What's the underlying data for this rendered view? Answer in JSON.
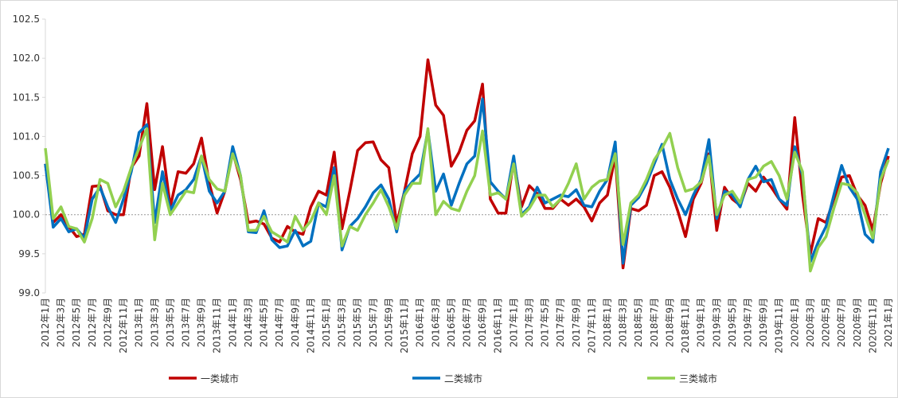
{
  "chart_data": {
    "type": "line",
    "categories": [
      "2012年1月",
      null,
      "2012年3月",
      null,
      "2012年5月",
      null,
      "2012年7月",
      null,
      "2012年9月",
      null,
      "2012年11月",
      null,
      "2013年1月",
      null,
      "2013年3月",
      null,
      "2013年5月",
      null,
      "2013年7月",
      null,
      "2013年9月",
      null,
      "2013年11月",
      null,
      "2014年1月",
      null,
      "2014年3月",
      null,
      "2014年5月",
      null,
      "2014年7月",
      null,
      "2014年9月",
      null,
      "2014年11月",
      null,
      "2015年1月",
      null,
      "2015年3月",
      null,
      "2015年5月",
      null,
      "2015年7月",
      null,
      "2015年9月",
      null,
      "2015年11月",
      null,
      "2016年1月",
      null,
      "2016年3月",
      null,
      "2016年5月",
      null,
      "2016年7月",
      null,
      "2016年9月",
      null,
      "2016年11月",
      null,
      "2017年1月",
      null,
      "2017年3月",
      null,
      "2017年5月",
      null,
      "2017年7月",
      null,
      "2017年9月",
      null,
      "2017年11月",
      null,
      "2018年1月",
      null,
      "2018年3月",
      null,
      "2018年5月",
      null,
      "2018年7月",
      null,
      "2018年9月",
      null,
      "2018年11月",
      null,
      "2019年1月",
      null,
      "2019年3月",
      null,
      "2019年5月",
      null,
      "2019年7月",
      null,
      "2019年9月",
      null,
      "2019年11月",
      null,
      "2020年1月",
      null,
      "2020年3月",
      null,
      "2020年5月",
      null,
      "2020年7月",
      null,
      "2020年9月",
      null,
      "2020年11月",
      null,
      "2021年1月"
    ],
    "series": [
      {
        "name": "一类城市",
        "color": "#c00000",
        "values": [
          100.65,
          99.9,
          100.0,
          99.85,
          99.72,
          99.75,
          100.36,
          100.37,
          100.05,
          100.0,
          100.0,
          100.6,
          100.75,
          101.42,
          100.32,
          100.87,
          100.1,
          100.55,
          100.53,
          100.65,
          100.98,
          100.4,
          100.02,
          100.3,
          100.8,
          100.45,
          99.9,
          99.92,
          99.88,
          99.7,
          99.65,
          99.85,
          99.78,
          99.75,
          100.1,
          100.3,
          100.25,
          100.8,
          99.82,
          100.3,
          100.82,
          100.92,
          100.93,
          100.7,
          100.6,
          99.88,
          100.3,
          100.78,
          101.0,
          101.98,
          101.4,
          101.27,
          100.62,
          100.8,
          101.08,
          101.2,
          101.67,
          100.2,
          100.02,
          100.02,
          100.7,
          100.1,
          100.37,
          100.27,
          100.08,
          100.08,
          100.2,
          100.12,
          100.2,
          100.1,
          99.92,
          100.15,
          100.25,
          100.75,
          99.32,
          100.08,
          100.05,
          100.12,
          100.5,
          100.55,
          100.35,
          100.05,
          99.72,
          100.2,
          100.4,
          100.78,
          99.8,
          100.35,
          100.2,
          100.12,
          100.4,
          100.3,
          100.48,
          100.35,
          100.2,
          100.07,
          101.24,
          100.25,
          99.5,
          99.95,
          99.9,
          100.2,
          100.48,
          100.5,
          100.25,
          100.12,
          99.8,
          100.4,
          100.75
        ]
      },
      {
        "name": "二类城市",
        "color": "#0070c0",
        "values": [
          100.65,
          99.84,
          99.95,
          99.78,
          99.82,
          99.7,
          100.2,
          100.35,
          100.1,
          99.9,
          100.2,
          100.55,
          101.05,
          101.15,
          99.9,
          100.55,
          100.05,
          100.25,
          100.32,
          100.45,
          100.75,
          100.3,
          100.15,
          100.3,
          100.87,
          100.5,
          99.78,
          99.77,
          100.05,
          99.68,
          99.58,
          99.6,
          99.8,
          99.6,
          99.66,
          100.15,
          100.1,
          100.6,
          99.55,
          99.85,
          99.95,
          100.1,
          100.28,
          100.38,
          100.2,
          99.78,
          100.3,
          100.42,
          100.52,
          101.08,
          100.3,
          100.52,
          100.12,
          100.4,
          100.65,
          100.75,
          101.48,
          100.42,
          100.3,
          100.2,
          100.75,
          100.0,
          100.1,
          100.35,
          100.15,
          100.2,
          100.25,
          100.23,
          100.32,
          100.12,
          100.1,
          100.3,
          100.45,
          100.93,
          99.38,
          100.12,
          100.22,
          100.4,
          100.65,
          100.9,
          100.45,
          100.2,
          100.0,
          100.25,
          100.45,
          100.96,
          99.95,
          100.3,
          100.25,
          100.1,
          100.45,
          100.62,
          100.42,
          100.45,
          100.2,
          100.12,
          100.87,
          100.5,
          99.4,
          99.65,
          99.85,
          100.25,
          100.63,
          100.35,
          100.2,
          99.75,
          99.65,
          100.55,
          100.85
        ]
      },
      {
        "name": "三类城市",
        "color": "#92d050",
        "values": [
          100.85,
          99.95,
          100.1,
          99.85,
          99.82,
          99.65,
          99.95,
          100.45,
          100.4,
          100.1,
          100.3,
          100.6,
          100.85,
          101.1,
          99.68,
          100.4,
          100.0,
          100.15,
          100.3,
          100.28,
          100.75,
          100.45,
          100.33,
          100.3,
          100.78,
          100.5,
          99.8,
          99.8,
          99.98,
          99.78,
          99.72,
          99.65,
          99.98,
          99.8,
          99.92,
          100.15,
          100.0,
          100.5,
          99.6,
          99.85,
          99.8,
          100.0,
          100.15,
          100.32,
          100.1,
          99.82,
          100.25,
          100.4,
          100.4,
          101.1,
          100.0,
          100.17,
          100.08,
          100.05,
          100.3,
          100.5,
          101.07,
          100.25,
          100.28,
          100.2,
          100.65,
          99.98,
          100.08,
          100.25,
          100.25,
          100.1,
          100.2,
          100.4,
          100.65,
          100.2,
          100.35,
          100.43,
          100.45,
          100.78,
          99.62,
          100.15,
          100.25,
          100.45,
          100.7,
          100.85,
          101.04,
          100.6,
          100.3,
          100.33,
          100.42,
          100.75,
          100.0,
          100.25,
          100.3,
          100.15,
          100.45,
          100.48,
          100.62,
          100.68,
          100.5,
          100.2,
          100.8,
          100.55,
          99.28,
          99.58,
          99.72,
          100.08,
          100.4,
          100.38,
          100.28,
          100.0,
          99.7,
          100.45,
          100.7
        ]
      }
    ],
    "ylim": [
      99,
      102.5
    ],
    "yticks": [
      {
        "value": 99,
        "label": "99.0"
      },
      99.5,
      {
        "value": 100,
        "label": "100.0"
      },
      100.5,
      {
        "value": 101,
        "label": "101.0"
      },
      101.5,
      {
        "value": 102,
        "label": "102.0"
      },
      102.5
    ],
    "reference_line": 100,
    "legend": "bottom"
  }
}
